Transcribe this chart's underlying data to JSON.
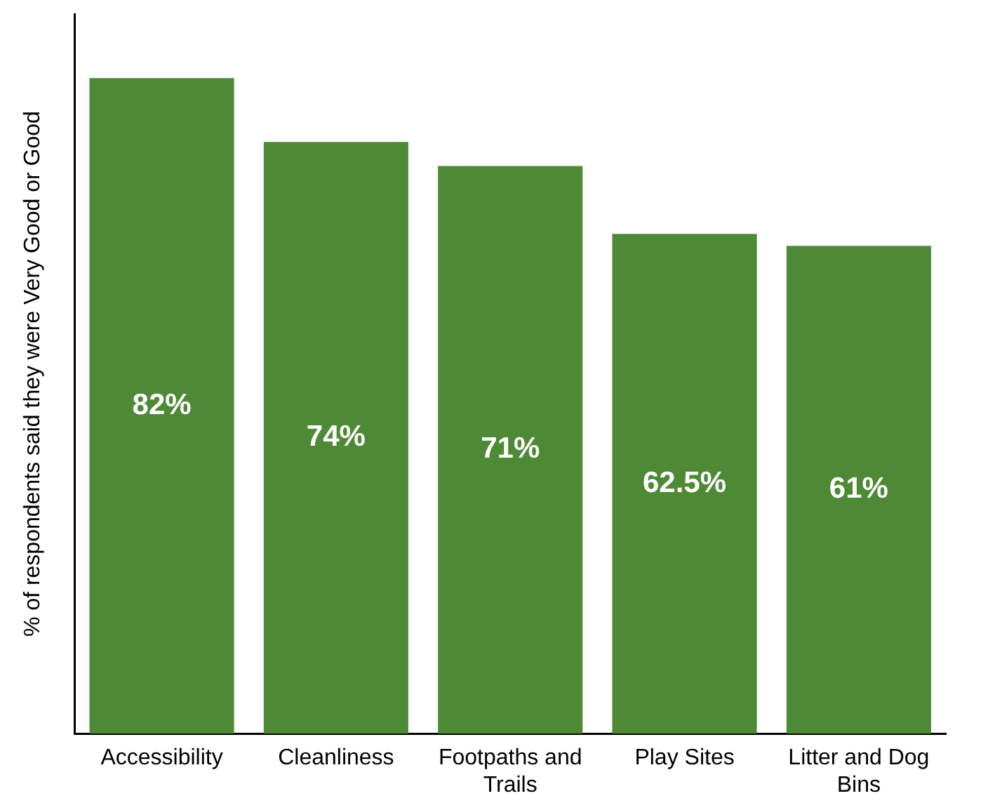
{
  "chart_data": {
    "type": "bar",
    "ylabel": "% of respondents said they were Very Good or Good",
    "categories": [
      "Accessibility",
      "Cleanliness",
      "Footpaths and Trails",
      "Play Sites",
      "Litter and Dog Bins"
    ],
    "values": [
      82,
      74,
      71,
      62.5,
      61
    ],
    "value_labels": [
      "82%",
      "74%",
      "71%",
      "62.5%",
      "61%"
    ],
    "color": "#4e8a35",
    "grid": false,
    "legend": false
  }
}
